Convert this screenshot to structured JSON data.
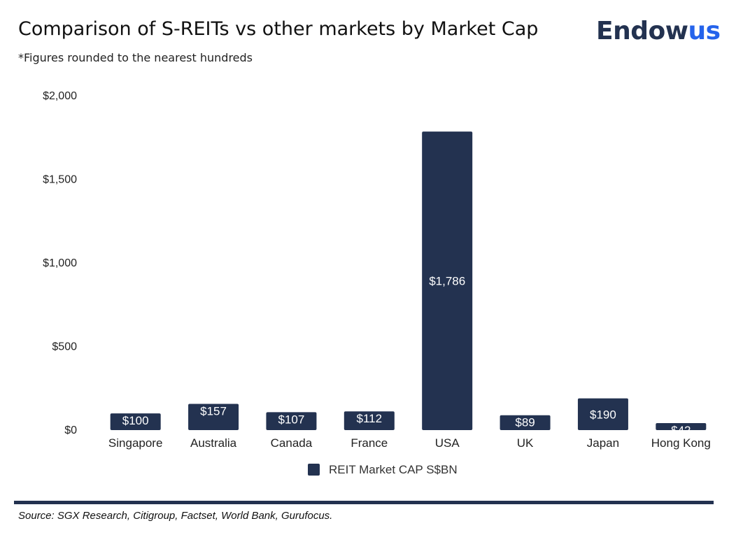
{
  "header": {
    "title": "Comparison of S-REITs vs other markets by Market Cap",
    "subtitle": "*Figures rounded to the nearest hundreds"
  },
  "brand": {
    "part1": "Endow",
    "part2": "us",
    "color1": "#233250",
    "color2": "#2563eb"
  },
  "chart_data": {
    "type": "bar",
    "categories": [
      "Singapore",
      "Australia",
      "Canada",
      "France",
      "USA",
      "UK",
      "Japan",
      "Hong Kong"
    ],
    "series": [
      {
        "name": "REIT Market CAP S$BN",
        "values": [
          100,
          157,
          107,
          112,
          1786,
          89,
          190,
          42
        ],
        "labels": [
          "$100",
          "$157",
          "$107",
          "$112",
          "$1,786",
          "$89",
          "$190",
          "$42"
        ]
      }
    ],
    "y_ticks": [
      0,
      500,
      1000,
      1500,
      2000
    ],
    "y_tick_labels": [
      "$0",
      "$500",
      "$1,000",
      "$1,500",
      "$2,000"
    ],
    "ylim": [
      0,
      2000
    ],
    "grid": false,
    "legend_position": "bottom",
    "bar_color": "#233250",
    "label_color": "#ffffff"
  },
  "footer": {
    "source": "Source: SGX Research, Citigroup, Factset, World Bank, Gurufocus."
  }
}
